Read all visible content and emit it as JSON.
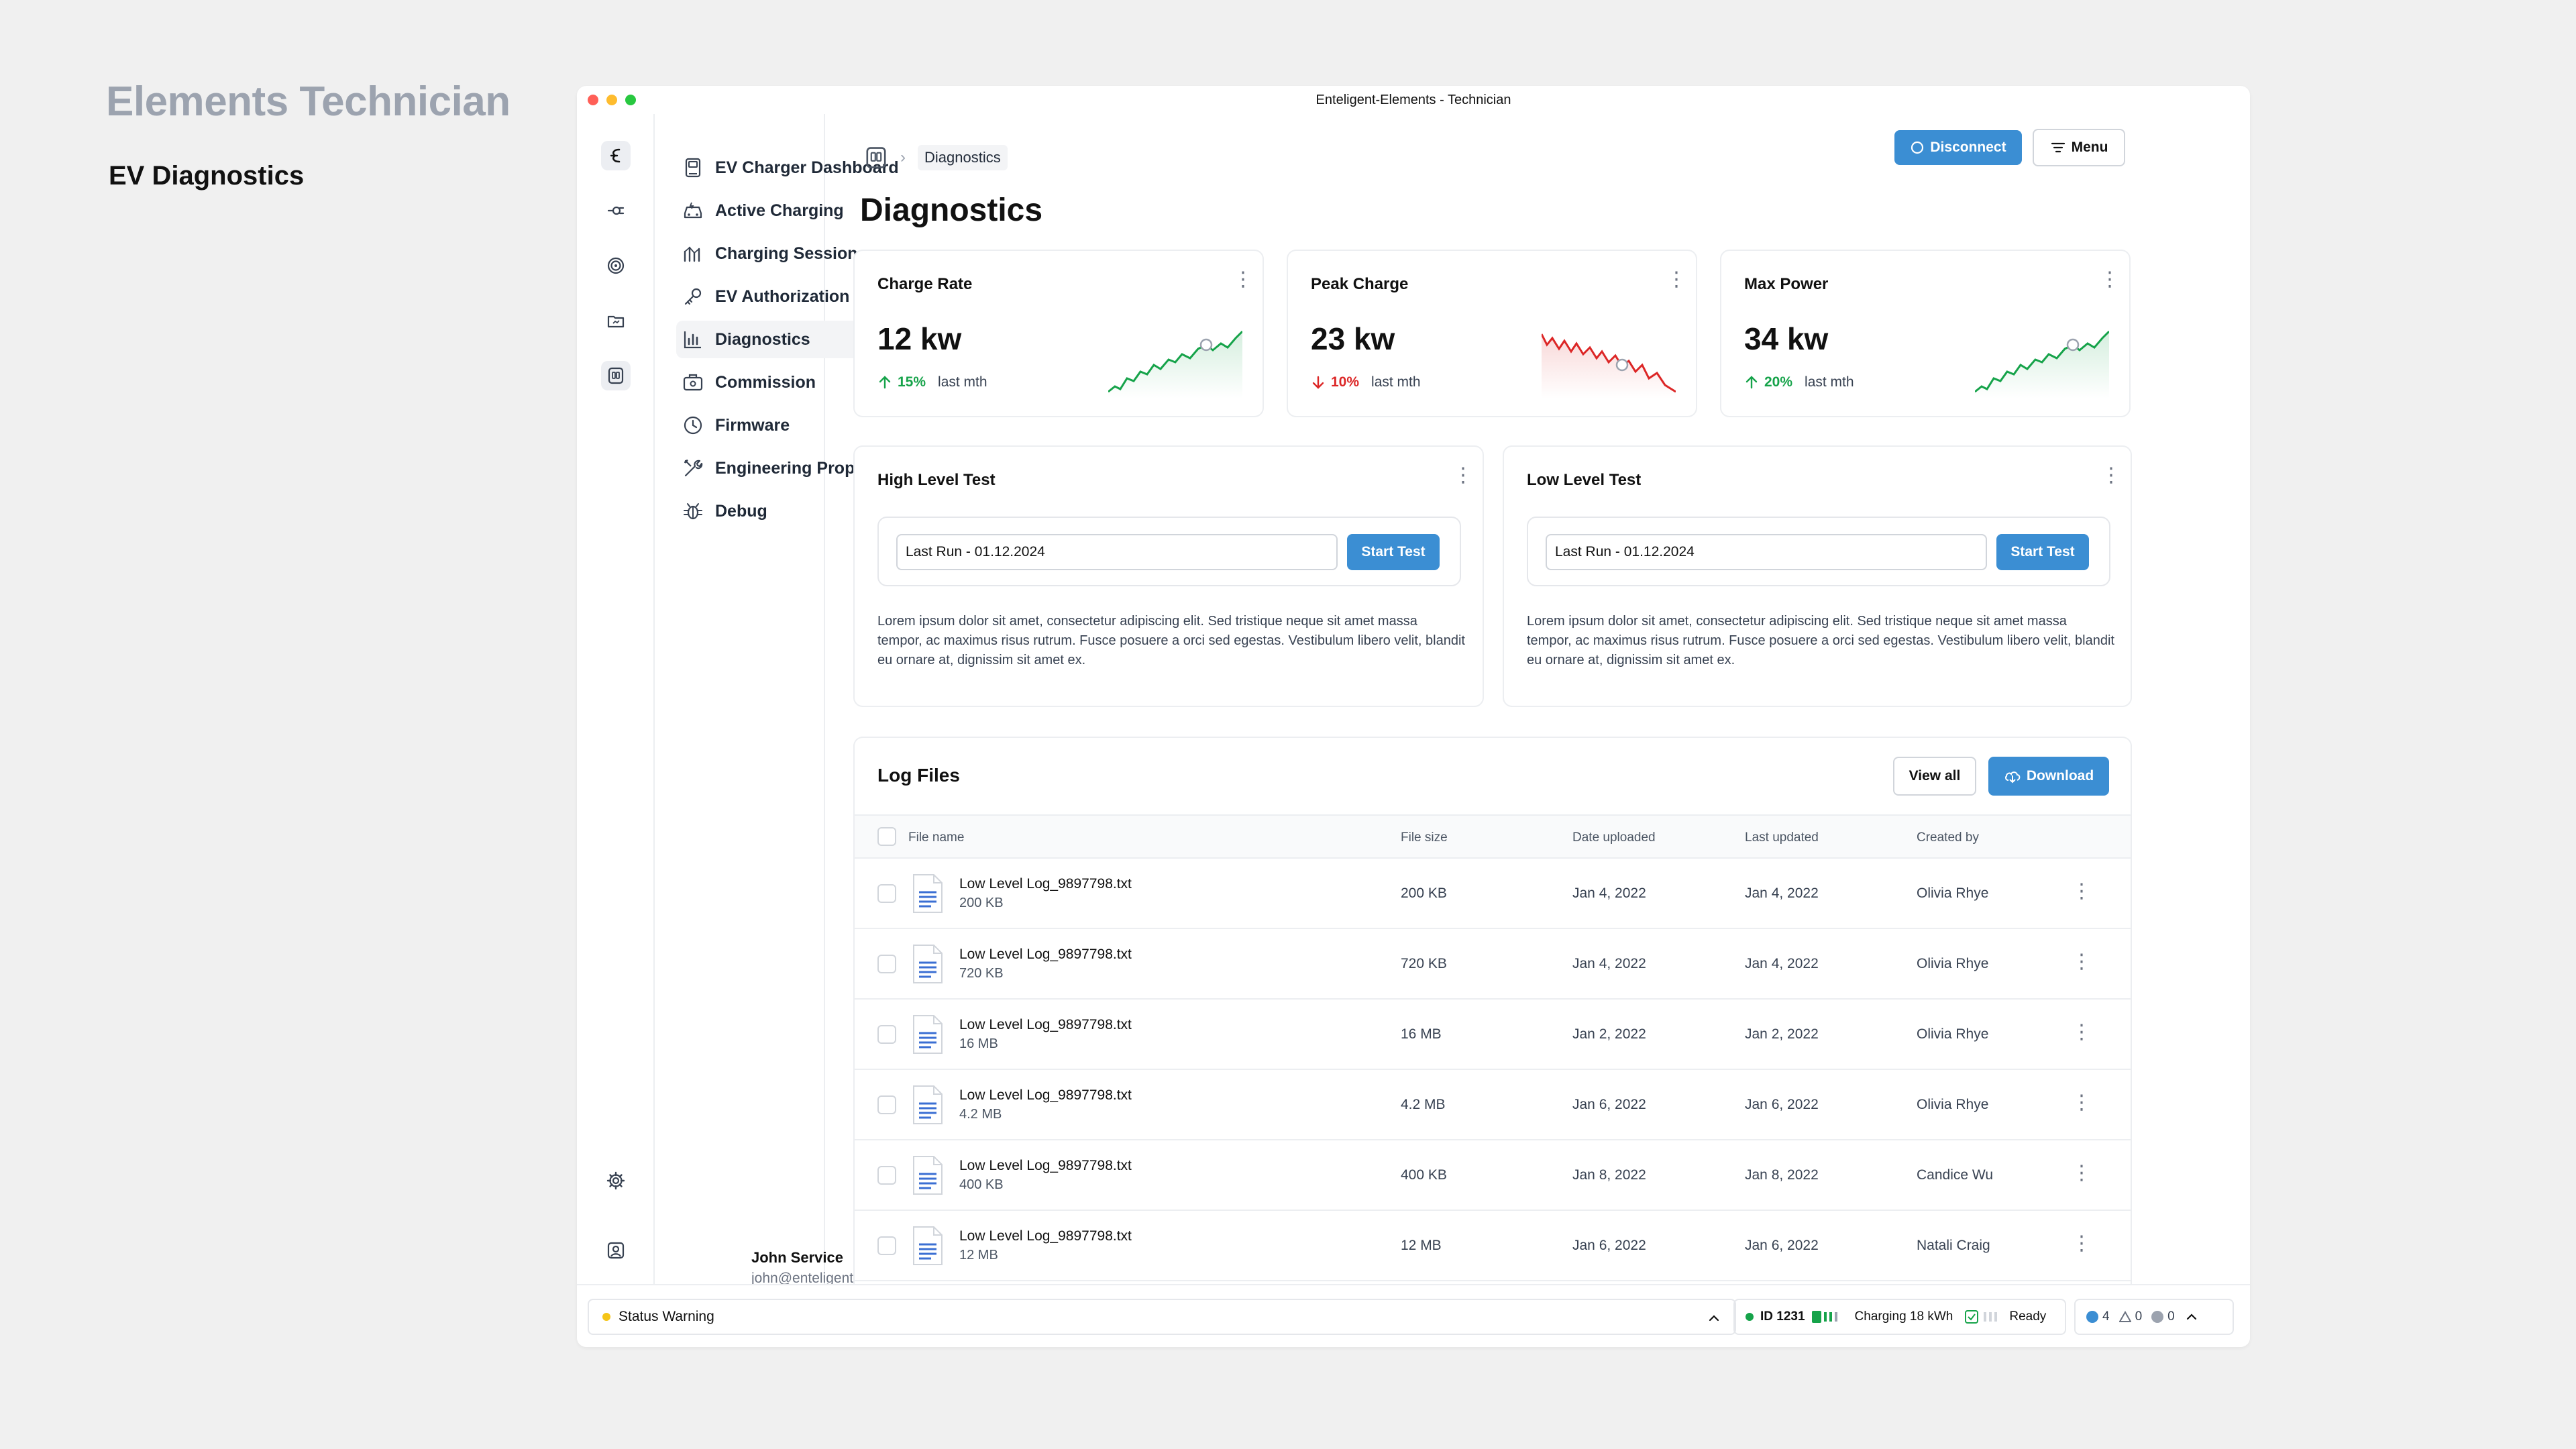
{
  "page": {
    "heading": "Elements Technician",
    "subheading": "EV Diagnostics"
  },
  "window": {
    "title": "Enteligent-Elements - Technician"
  },
  "colors": {
    "accent": "#3b8ed3",
    "up": "#16a34a",
    "down": "#dc2626",
    "warning": "#f5c518",
    "background": "#f0f0f0"
  },
  "rail": {
    "items": [
      {
        "icon": "enteligent-logo-icon",
        "active": true
      },
      {
        "icon": "charger-plug-icon"
      },
      {
        "icon": "target-icon"
      },
      {
        "icon": "folder-icon"
      },
      {
        "icon": "ocr-scan-icon",
        "active": true
      },
      {
        "icon": "gear-icon"
      },
      {
        "icon": "user-profile-icon"
      }
    ]
  },
  "nav": {
    "items": [
      {
        "label": "EV Charger Dashboard",
        "icon": "ev-charger-icon"
      },
      {
        "label": "Active Charging",
        "icon": "car-icon"
      },
      {
        "label": "Charging Sessions",
        "icon": "sessions-icon"
      },
      {
        "label": "EV Authorization",
        "icon": "key-icon"
      },
      {
        "label": "Diagnostics",
        "icon": "bar-chart-icon",
        "active": true
      },
      {
        "label": "Commission",
        "icon": "commission-icon"
      },
      {
        "label": "Firmware",
        "icon": "clock-icon"
      },
      {
        "label": "Engineering Properties",
        "icon": "tools-icon"
      },
      {
        "label": "Debug",
        "icon": "bug-icon"
      }
    ]
  },
  "user": {
    "name": "John Service",
    "email": "john@enteligent.com"
  },
  "header": {
    "breadcrumb_current": "Diagnostics",
    "disconnect_label": "Disconnect",
    "menu_label": "Menu",
    "title": "Diagnostics"
  },
  "stats": [
    {
      "title": "Charge Rate",
      "value": "12 kw",
      "change": "15%",
      "direction": "up",
      "period": "last mth"
    },
    {
      "title": "Peak Charge",
      "value": "23 kw",
      "change": "10%",
      "direction": "down",
      "period": "last mth"
    },
    {
      "title": "Max Power",
      "value": "34 kw",
      "change": "20%",
      "direction": "up",
      "period": "last mth"
    }
  ],
  "tests": [
    {
      "title": "High Level Test",
      "last_run": "Last Run  - 01.12.2024",
      "button": "Start Test",
      "description": "Lorem ipsum dolor sit amet, consectetur adipiscing elit. Sed tristique neque sit amet massa tempor, ac maximus risus rutrum. Fusce posuere a orci sed egestas. Vestibulum libero velit, blandit eu ornare at, dignissim sit amet ex."
    },
    {
      "title": "Low Level Test",
      "last_run": "Last Run  - 01.12.2024",
      "button": "Start Test",
      "description": "Lorem ipsum dolor sit amet, consectetur adipiscing elit. Sed tristique neque sit amet massa tempor, ac maximus risus rutrum. Fusce posuere a orci sed egestas. Vestibulum libero velit, blandit eu ornare at, dignissim sit amet ex."
    }
  ],
  "logs": {
    "title": "Log Files",
    "view_all": "View all",
    "download": "Download",
    "columns": [
      "File name",
      "File size",
      "Date uploaded",
      "Last updated",
      "Created by"
    ],
    "rows": [
      {
        "name": "Low Level Log_9897798.txt",
        "sub": "200 KB",
        "size": "200 KB",
        "uploaded": "Jan 4, 2022",
        "updated": "Jan 4, 2022",
        "by": "Olivia Rhye"
      },
      {
        "name": "Low Level Log_9897798.txt",
        "sub": "720 KB",
        "size": "720 KB",
        "uploaded": "Jan 4, 2022",
        "updated": "Jan 4, 2022",
        "by": "Olivia Rhye"
      },
      {
        "name": "Low Level Log_9897798.txt",
        "sub": "16 MB",
        "size": "16 MB",
        "uploaded": "Jan 2, 2022",
        "updated": "Jan 2, 2022",
        "by": "Olivia Rhye"
      },
      {
        "name": "Low Level Log_9897798.txt",
        "sub": "4.2 MB",
        "size": "4.2 MB",
        "uploaded": "Jan 6, 2022",
        "updated": "Jan 6, 2022",
        "by": "Olivia Rhye"
      },
      {
        "name": "Low Level Log_9897798.txt",
        "sub": "400 KB",
        "size": "400 KB",
        "uploaded": "Jan 8, 2022",
        "updated": "Jan 8, 2022",
        "by": "Candice Wu"
      },
      {
        "name": "Low Level Log_9897798.txt",
        "sub": "12 MB",
        "size": "12 MB",
        "uploaded": "Jan 6, 2022",
        "updated": "Jan 6, 2022",
        "by": "Natali Craig"
      }
    ]
  },
  "status": {
    "warning": "Status Warning",
    "device_id": "ID 1231",
    "charging": "Charging 18 kWh",
    "ready": "Ready",
    "info_count": "4",
    "warning_count": "0",
    "error_count": "0"
  }
}
